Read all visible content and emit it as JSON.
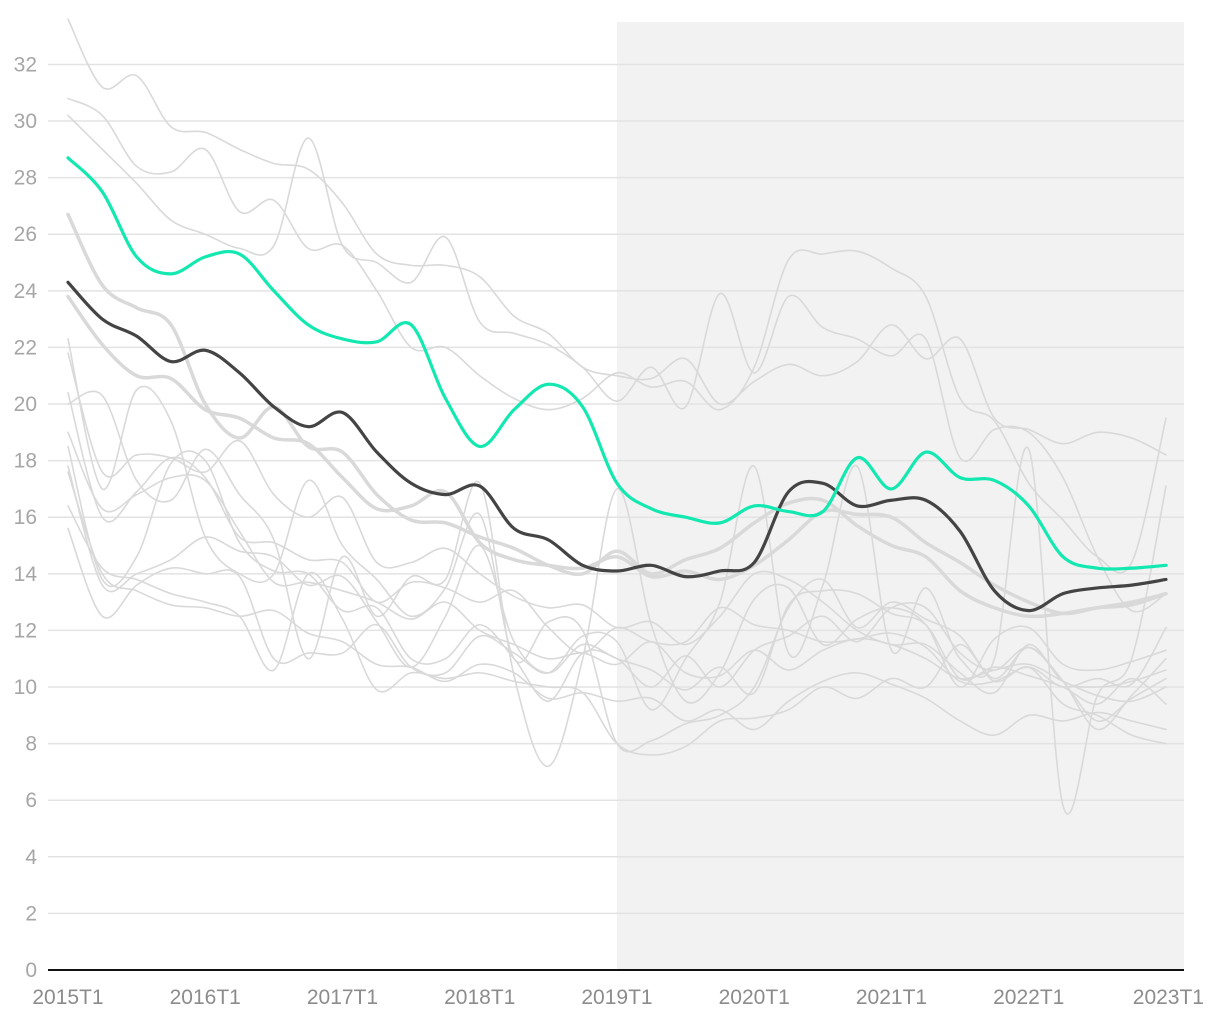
{
  "chart_data": {
    "type": "line",
    "title": "",
    "xlabel": "",
    "ylabel": "",
    "ylim": [
      0,
      33.5
    ],
    "yticks": [
      0,
      2,
      4,
      6,
      8,
      10,
      12,
      14,
      16,
      18,
      20,
      22,
      24,
      26,
      28,
      30,
      32
    ],
    "x_tick_labels": [
      "2015T1",
      "2016T1",
      "2017T1",
      "2018T1",
      "2019T1",
      "2020T1",
      "2021T1",
      "2022T1",
      "2023T1"
    ],
    "x_start_year": 2015,
    "periods_per_year": 4,
    "n_points": 33,
    "grid": true,
    "shaded_region": {
      "from_index": 16,
      "to_index": 33,
      "color": "#f2f2f2"
    },
    "highlight_series": [
      {
        "name": "highlight-green",
        "color": "#12e8b0",
        "values": [
          28.7,
          27.5,
          25.2,
          24.6,
          25.2,
          25.3,
          24.0,
          22.8,
          22.3,
          22.2,
          22.8,
          20.2,
          18.5,
          19.8,
          20.7,
          19.9,
          17.2,
          16.3,
          16.0,
          15.8,
          16.4,
          16.2,
          16.2,
          18.1,
          17.0,
          18.3,
          17.4,
          17.3,
          16.4,
          14.6,
          14.2,
          14.2,
          14.3
        ]
      },
      {
        "name": "highlight-dark",
        "color": "#444444",
        "values": [
          24.3,
          23.0,
          22.4,
          21.5,
          21.9,
          21.1,
          19.9,
          19.2,
          19.7,
          18.3,
          17.2,
          16.8,
          17.1,
          15.6,
          15.2,
          14.3,
          14.1,
          14.3,
          13.9,
          14.1,
          14.4,
          16.9,
          17.2,
          16.4,
          16.6,
          16.6,
          15.5,
          13.4,
          12.7,
          13.3,
          13.5,
          13.6,
          13.8
        ]
      }
    ],
    "background_series": [
      {
        "name": "bg-1",
        "color": "#d9d9d9",
        "values": [
          33.6,
          31.2,
          31.6,
          29.8,
          29.6,
          29.0,
          28.5,
          28.3,
          27.1,
          25.3,
          24.9,
          24.9,
          24.5,
          23.1,
          22.5,
          21.3,
          21.0,
          20.9,
          21.6,
          20.0,
          20.8,
          21.4,
          21.0,
          21.5,
          22.8,
          21.6,
          22.3,
          19.5,
          19.1,
          18.6,
          19.0,
          18.8,
          18.2
        ]
      },
      {
        "name": "bg-2",
        "color": "#d9d9d9",
        "values": [
          30.8,
          30.2,
          28.4,
          28.2,
          29.0,
          26.8,
          27.2,
          25.5,
          25.6,
          24.0,
          22.0,
          22.0,
          21.0,
          20.2,
          19.8,
          20.2,
          21.1,
          20.6,
          20.8,
          19.8,
          21.3,
          25.1,
          25.3,
          25.4,
          24.8,
          23.8,
          20.2,
          19.4,
          17.2,
          15.9,
          14.6,
          14.4,
          19.5
        ]
      },
      {
        "name": "bg-3",
        "color": "#d9d9d9",
        "values": [
          30.2,
          29.0,
          27.8,
          26.5,
          26.0,
          25.5,
          25.6,
          29.4,
          25.6,
          25.0,
          24.3,
          25.9,
          22.9,
          22.5,
          22.1,
          21.3,
          20.1,
          21.3,
          19.9,
          23.9,
          21.1,
          23.8,
          22.7,
          22.3,
          21.7,
          22.3,
          18.1,
          19.1,
          19.0,
          17.4,
          14.6,
          12.7,
          13.3
        ]
      },
      {
        "name": "bg-4",
        "color": "#d9d9d9",
        "values": [
          26.7,
          24.2,
          23.4,
          22.8,
          20.0,
          18.8,
          19.9,
          18.5,
          18.3,
          16.8,
          15.9,
          15.8,
          15.3,
          14.9,
          14.3,
          14.0,
          14.8,
          14.0,
          14.5,
          14.9,
          15.8,
          16.5,
          16.6,
          15.7,
          15.0,
          14.6,
          13.4,
          12.8,
          12.5,
          12.6,
          12.8,
          12.9,
          13.3
        ]
      },
      {
        "name": "bg-5",
        "color": "#d9d9d9",
        "values": [
          23.8,
          22.1,
          21.0,
          20.9,
          19.8,
          19.5,
          18.8,
          18.6,
          17.4,
          16.3,
          16.4,
          16.9,
          15.1,
          14.5,
          14.3,
          14.2,
          14.6,
          13.9,
          14.1,
          13.8,
          14.3,
          15.2,
          16.2,
          16.1,
          16.0,
          15.1,
          14.4,
          13.6,
          13.0,
          12.6,
          12.8,
          13.0,
          13.3
        ]
      },
      {
        "name": "bg-6",
        "color": "#d9d9d9",
        "values": [
          22.3,
          17.0,
          20.5,
          19.4,
          15.3,
          14.0,
          14.0,
          17.3,
          15.0,
          13.8,
          12.5,
          13.5,
          16.1,
          11.0,
          12.3,
          12.0,
          8.0,
          8.1,
          8.7,
          9.0,
          10.0,
          12.8,
          13.8,
          12.1,
          13.0,
          12.4,
          11.8,
          10.3,
          11.4,
          10.2,
          8.5,
          9.7,
          11.0
        ]
      },
      {
        "name": "bg-7",
        "color": "#d9d9d9",
        "values": [
          21.8,
          17.6,
          18.2,
          18.1,
          17.6,
          18.7,
          16.8,
          16.0,
          16.7,
          14.4,
          14.4,
          14.9,
          14.0,
          13.2,
          12.8,
          12.9,
          12.1,
          12.3,
          11.5,
          12.5,
          14.0,
          13.8,
          13.0,
          12.0,
          11.5,
          11.5,
          10.5,
          9.8,
          11.5,
          10.2,
          10.0,
          10.2,
          10.6
        ]
      },
      {
        "name": "bg-8",
        "color": "#d9d9d9",
        "values": [
          20.4,
          16.0,
          16.9,
          18.1,
          17.4,
          15.3,
          15.1,
          14.5,
          14.4,
          13.0,
          13.7,
          13.5,
          13.0,
          13.4,
          12.1,
          11.2,
          12.1,
          11.6,
          11.6,
          12.8,
          12.2,
          12.0,
          11.6,
          11.7,
          11.9,
          11.4,
          10.2,
          10.2,
          10.7,
          10.0,
          10.3,
          10.1,
          12.1
        ]
      },
      {
        "name": "bg-9",
        "color": "#d9d9d9",
        "values": [
          20.0,
          20.3,
          17.3,
          16.6,
          18.4,
          16.8,
          15.2,
          11.0,
          14.6,
          12.5,
          13.9,
          13.8,
          17.2,
          10.4,
          7.2,
          11.0,
          17.0,
          12.2,
          9.5,
          10.5,
          13.1,
          13.5,
          11.5,
          12.4,
          12.8,
          12.2,
          10.0,
          11.7,
          12.1,
          10.8,
          10.6,
          10.9,
          11.3
        ]
      },
      {
        "name": "bg-10",
        "color": "#d9d9d9",
        "values": [
          19.0,
          16.3,
          16.8,
          17.4,
          17.3,
          15.5,
          13.7,
          13.7,
          13.4,
          13.0,
          12.4,
          13.0,
          12.0,
          11.5,
          11.0,
          11.2,
          10.8,
          11.6,
          10.5,
          10.4,
          11.3,
          10.6,
          11.3,
          11.7,
          11.5,
          11.0,
          10.3,
          10.6,
          10.8,
          10.2,
          9.7,
          9.5,
          10.0
        ]
      },
      {
        "name": "bg-11",
        "color": "#d9d9d9",
        "values": [
          18.5,
          13.8,
          14.6,
          17.9,
          18.0,
          15.1,
          14.1,
          14.0,
          12.7,
          12.8,
          11.0,
          11.0,
          12.2,
          11.0,
          9.5,
          11.2,
          11.0,
          10.0,
          11.1,
          10.0,
          11.3,
          11.8,
          12.5,
          11.6,
          12.8,
          12.8,
          11.2,
          10.6,
          11.4,
          10.2,
          8.8,
          9.6,
          10.3
        ]
      },
      {
        "name": "bg-12",
        "color": "#d9d9d9",
        "values": [
          17.8,
          13.6,
          14.0,
          14.5,
          15.3,
          14.8,
          14.6,
          13.6,
          13.9,
          12.3,
          10.7,
          12.5,
          15.0,
          11.6,
          10.5,
          11.5,
          11.0,
          10.6,
          9.9,
          10.7,
          9.8,
          12.9,
          13.4,
          13.3,
          12.6,
          12.2,
          10.3,
          10.7,
          10.4,
          10.0,
          9.4,
          10.3,
          9.4
        ]
      },
      {
        "name": "bg-13",
        "color": "#d9d9d9",
        "values": [
          17.6,
          14.0,
          13.4,
          12.9,
          12.8,
          12.5,
          12.7,
          11.9,
          11.6,
          10.8,
          10.7,
          10.2,
          10.8,
          10.5,
          9.6,
          9.8,
          9.5,
          9.6,
          8.8,
          9.2,
          8.5,
          9.5,
          10.2,
          10.5,
          10.1,
          9.6,
          8.8,
          8.3,
          9.0,
          8.8,
          9.1,
          8.8,
          8.5
        ]
      },
      {
        "name": "bg-14",
        "color": "#d9d9d9",
        "values": [
          16.4,
          14.2,
          13.8,
          13.3,
          13.0,
          12.5,
          10.6,
          14.0,
          12.4,
          9.9,
          10.5,
          10.3,
          10.5,
          10.2,
          10.0,
          9.8,
          8.0,
          7.6,
          7.9,
          8.8,
          8.9,
          9.2,
          10.0,
          9.6,
          10.3,
          10.0,
          11.5,
          10.2,
          10.7,
          9.4,
          9.0,
          8.3,
          8.0
        ]
      },
      {
        "name": "bg-15",
        "color": "#d9d9d9",
        "values": [
          15.6,
          12.5,
          13.6,
          14.2,
          14.0,
          13.9,
          11.0,
          11.2,
          11.2,
          12.2,
          10.7,
          10.5,
          11.8,
          11.2,
          10.5,
          11.8,
          11.6,
          9.2,
          11.0,
          13.0,
          17.8,
          11.2,
          13.6,
          17.8,
          11.3,
          13.5,
          11.0,
          11.0,
          18.4,
          5.8,
          9.7,
          11.0,
          17.1
        ]
      }
    ]
  }
}
